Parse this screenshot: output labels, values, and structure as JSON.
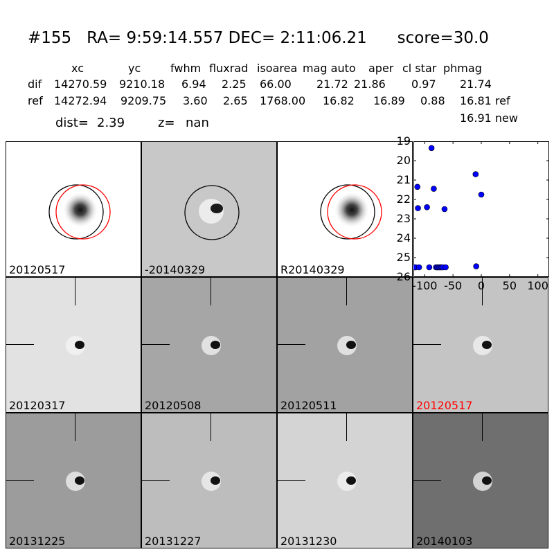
{
  "header": {
    "title": "#155   RA= 9:59:14.557 DEC= 2:11:06.21      score=30.0",
    "columns": [
      "xc",
      "yc",
      "fwhm",
      "fluxrad",
      "isoarea",
      "mag auto",
      "aper",
      "cl star",
      "phmag"
    ],
    "rows": [
      {
        "label": "dif",
        "values": [
          "14270.59",
          "9210.18",
          "6.94",
          "2.25",
          "66.00",
          "21.72",
          "21.86",
          "0.97",
          "21.74"
        ]
      },
      {
        "label": "ref",
        "values": [
          "14272.94",
          "9209.75",
          "3.60",
          "2.65",
          "1768.00",
          "16.82",
          "16.89",
          "0.88",
          "16.81 ref"
        ]
      }
    ],
    "extra_phmag": "16.91 new",
    "dist_label": "dist=",
    "dist_value": "2.39",
    "z_label": "z=",
    "z_value": "nan"
  },
  "top_panels": [
    {
      "label": "20120517",
      "bg": "#ffffff",
      "circles": [
        "black",
        "red"
      ]
    },
    {
      "label": "-20140329",
      "bg": "#c8c8c8",
      "circles": [
        "black"
      ]
    },
    {
      "label": "R20140329",
      "bg": "#ffffff",
      "circles": [
        "black",
        "red"
      ]
    }
  ],
  "stamps": [
    {
      "label": "20120317",
      "bg": "#e2e2e2",
      "highlight": false
    },
    {
      "label": "20120508",
      "bg": "#a6a6a6",
      "highlight": false
    },
    {
      "label": "20120511",
      "bg": "#a2a2a2",
      "highlight": false
    },
    {
      "label": "20120517",
      "bg": "#c4c4c4",
      "highlight": true
    },
    {
      "label": "20131225",
      "bg": "#9c9c9c",
      "highlight": false
    },
    {
      "label": "20131227",
      "bg": "#bdbdbd",
      "highlight": false
    },
    {
      "label": "20131230",
      "bg": "#d4d4d4",
      "highlight": false
    },
    {
      "label": "20140103",
      "bg": "#6f6f6f",
      "highlight": false
    }
  ],
  "colors": {
    "highlight": "#ff0000",
    "marker": "#0000ff"
  },
  "chart_data": {
    "type": "scatter",
    "title": "",
    "xlabel": "",
    "ylabel": "",
    "xlim": [
      -120,
      120
    ],
    "ylim": [
      26,
      19
    ],
    "xticks": [
      "-100",
      "-50",
      "0",
      "50",
      "100"
    ],
    "xtick_values": [
      -100,
      -50,
      0,
      50,
      100
    ],
    "yticks": [
      "19",
      "20",
      "21",
      "22",
      "23",
      "24",
      "25",
      "26"
    ],
    "ytick_values": [
      19,
      20,
      21,
      22,
      23,
      24,
      25,
      26
    ],
    "series": [
      {
        "x": [
          -118,
          -116,
          -113,
          -112,
          -110,
          -96,
          -92,
          -88,
          -84,
          -80,
          -78,
          -76,
          -74,
          -72,
          -70,
          -68,
          -65,
          -63,
          -10,
          -9,
          0
        ],
        "y": [
          25.5,
          25.5,
          21.35,
          22.45,
          25.5,
          22.4,
          25.5,
          19.35,
          21.45,
          25.5,
          25.5,
          25.5,
          25.5,
          25.5,
          25.5,
          25.5,
          22.5,
          25.5,
          20.7,
          25.45,
          21.75
        ]
      }
    ]
  }
}
